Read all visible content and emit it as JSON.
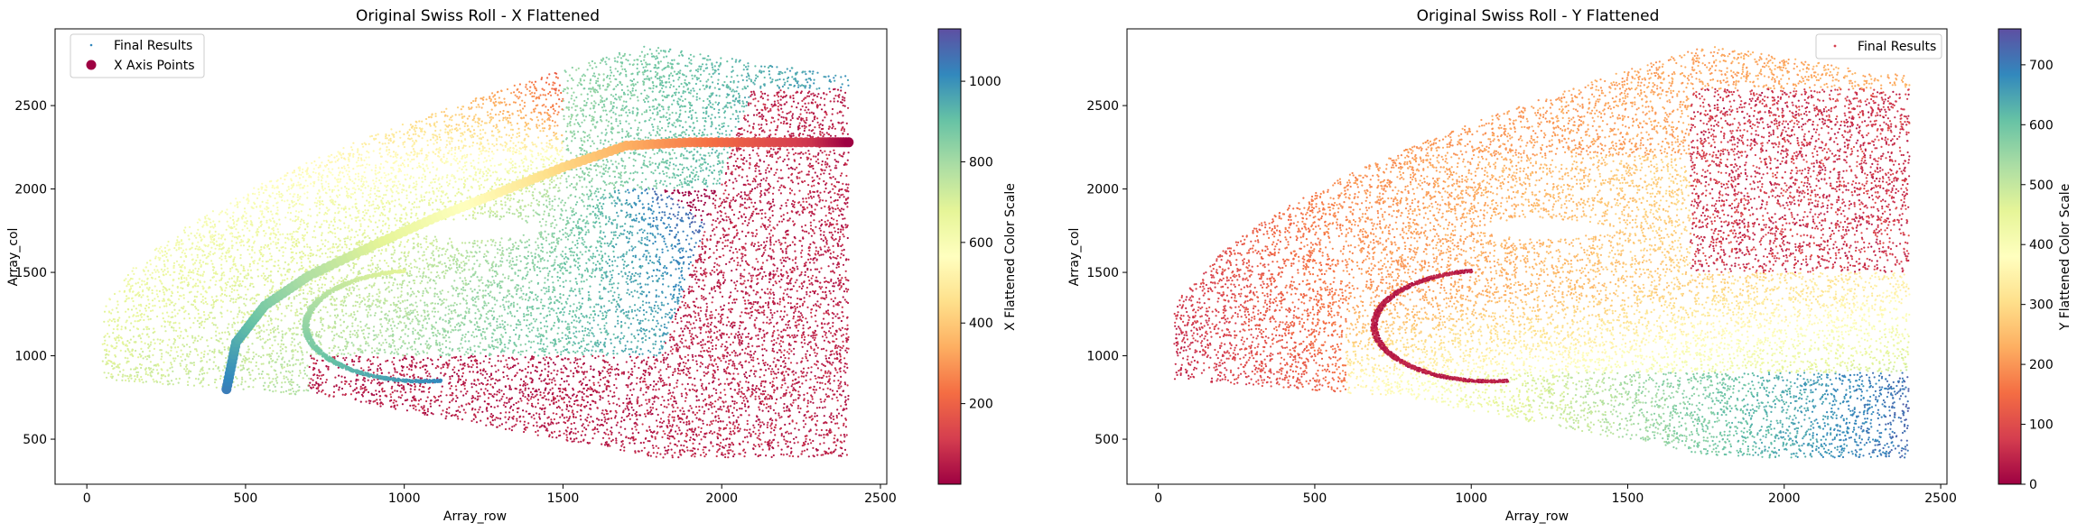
{
  "chart_data": [
    {
      "type": "scatter",
      "title": "Original Swiss Roll - X Flattened",
      "xlabel": "Array_row",
      "ylabel": "Array_col",
      "xlim": [
        -100,
        2520
      ],
      "ylim": [
        230,
        2960
      ],
      "xticks": [
        0,
        500,
        1000,
        1500,
        2000,
        2500
      ],
      "yticks": [
        500,
        1000,
        1500,
        2000,
        2500
      ],
      "grid": false,
      "legend_position": "upper-left",
      "series": [
        {
          "name": "Final Results",
          "marker": "small-dot",
          "color_by": "X Flattened Color Scale"
        },
        {
          "name": "X Axis Points",
          "marker": "large-dot",
          "color_by": "X Flattened Color Scale",
          "path": [
            [
              440,
              800
            ],
            [
              470,
              1080
            ],
            [
              560,
              1300
            ],
            [
              700,
              1480
            ],
            [
              900,
              1660
            ],
            [
              1100,
              1830
            ],
            [
              1300,
              1980
            ],
            [
              1500,
              2130
            ],
            [
              1700,
              2260
            ],
            [
              1900,
              2280
            ],
            [
              2100,
              2280
            ],
            [
              2300,
              2280
            ],
            [
              2400,
              2280
            ]
          ]
        }
      ],
      "colorbar": {
        "label": "X Flattened Color Scale",
        "min": 0,
        "max": 1130,
        "ticks": [
          200,
          400,
          600,
          800,
          1000
        ],
        "colormap": "Spectral"
      }
    },
    {
      "type": "scatter",
      "title": "Original Swiss Roll - Y Flattened",
      "xlabel": "Array_row",
      "ylabel": "Array_col",
      "xlim": [
        -100,
        2520
      ],
      "ylim": [
        230,
        2960
      ],
      "xticks": [
        0,
        500,
        1000,
        1500,
        2000,
        2500
      ],
      "yticks": [
        500,
        1000,
        1500,
        2000,
        2500
      ],
      "grid": false,
      "legend_position": "upper-right",
      "series": [
        {
          "name": "Final Results",
          "marker": "small-dot",
          "color_by": "Y Flattened Color Scale"
        }
      ],
      "colorbar": {
        "label": "Y Flattened Color Scale",
        "min": 0,
        "max": 760,
        "ticks": [
          0,
          100,
          200,
          300,
          400,
          500,
          600,
          700
        ],
        "colormap": "Spectral"
      }
    }
  ],
  "colors": {
    "spectral": [
      "#9e0142",
      "#d53e4f",
      "#f46d43",
      "#fdae61",
      "#fee08b",
      "#ffffbf",
      "#e6f598",
      "#abdda4",
      "#66c2a5",
      "#3288bd",
      "#5e4fa2"
    ]
  }
}
